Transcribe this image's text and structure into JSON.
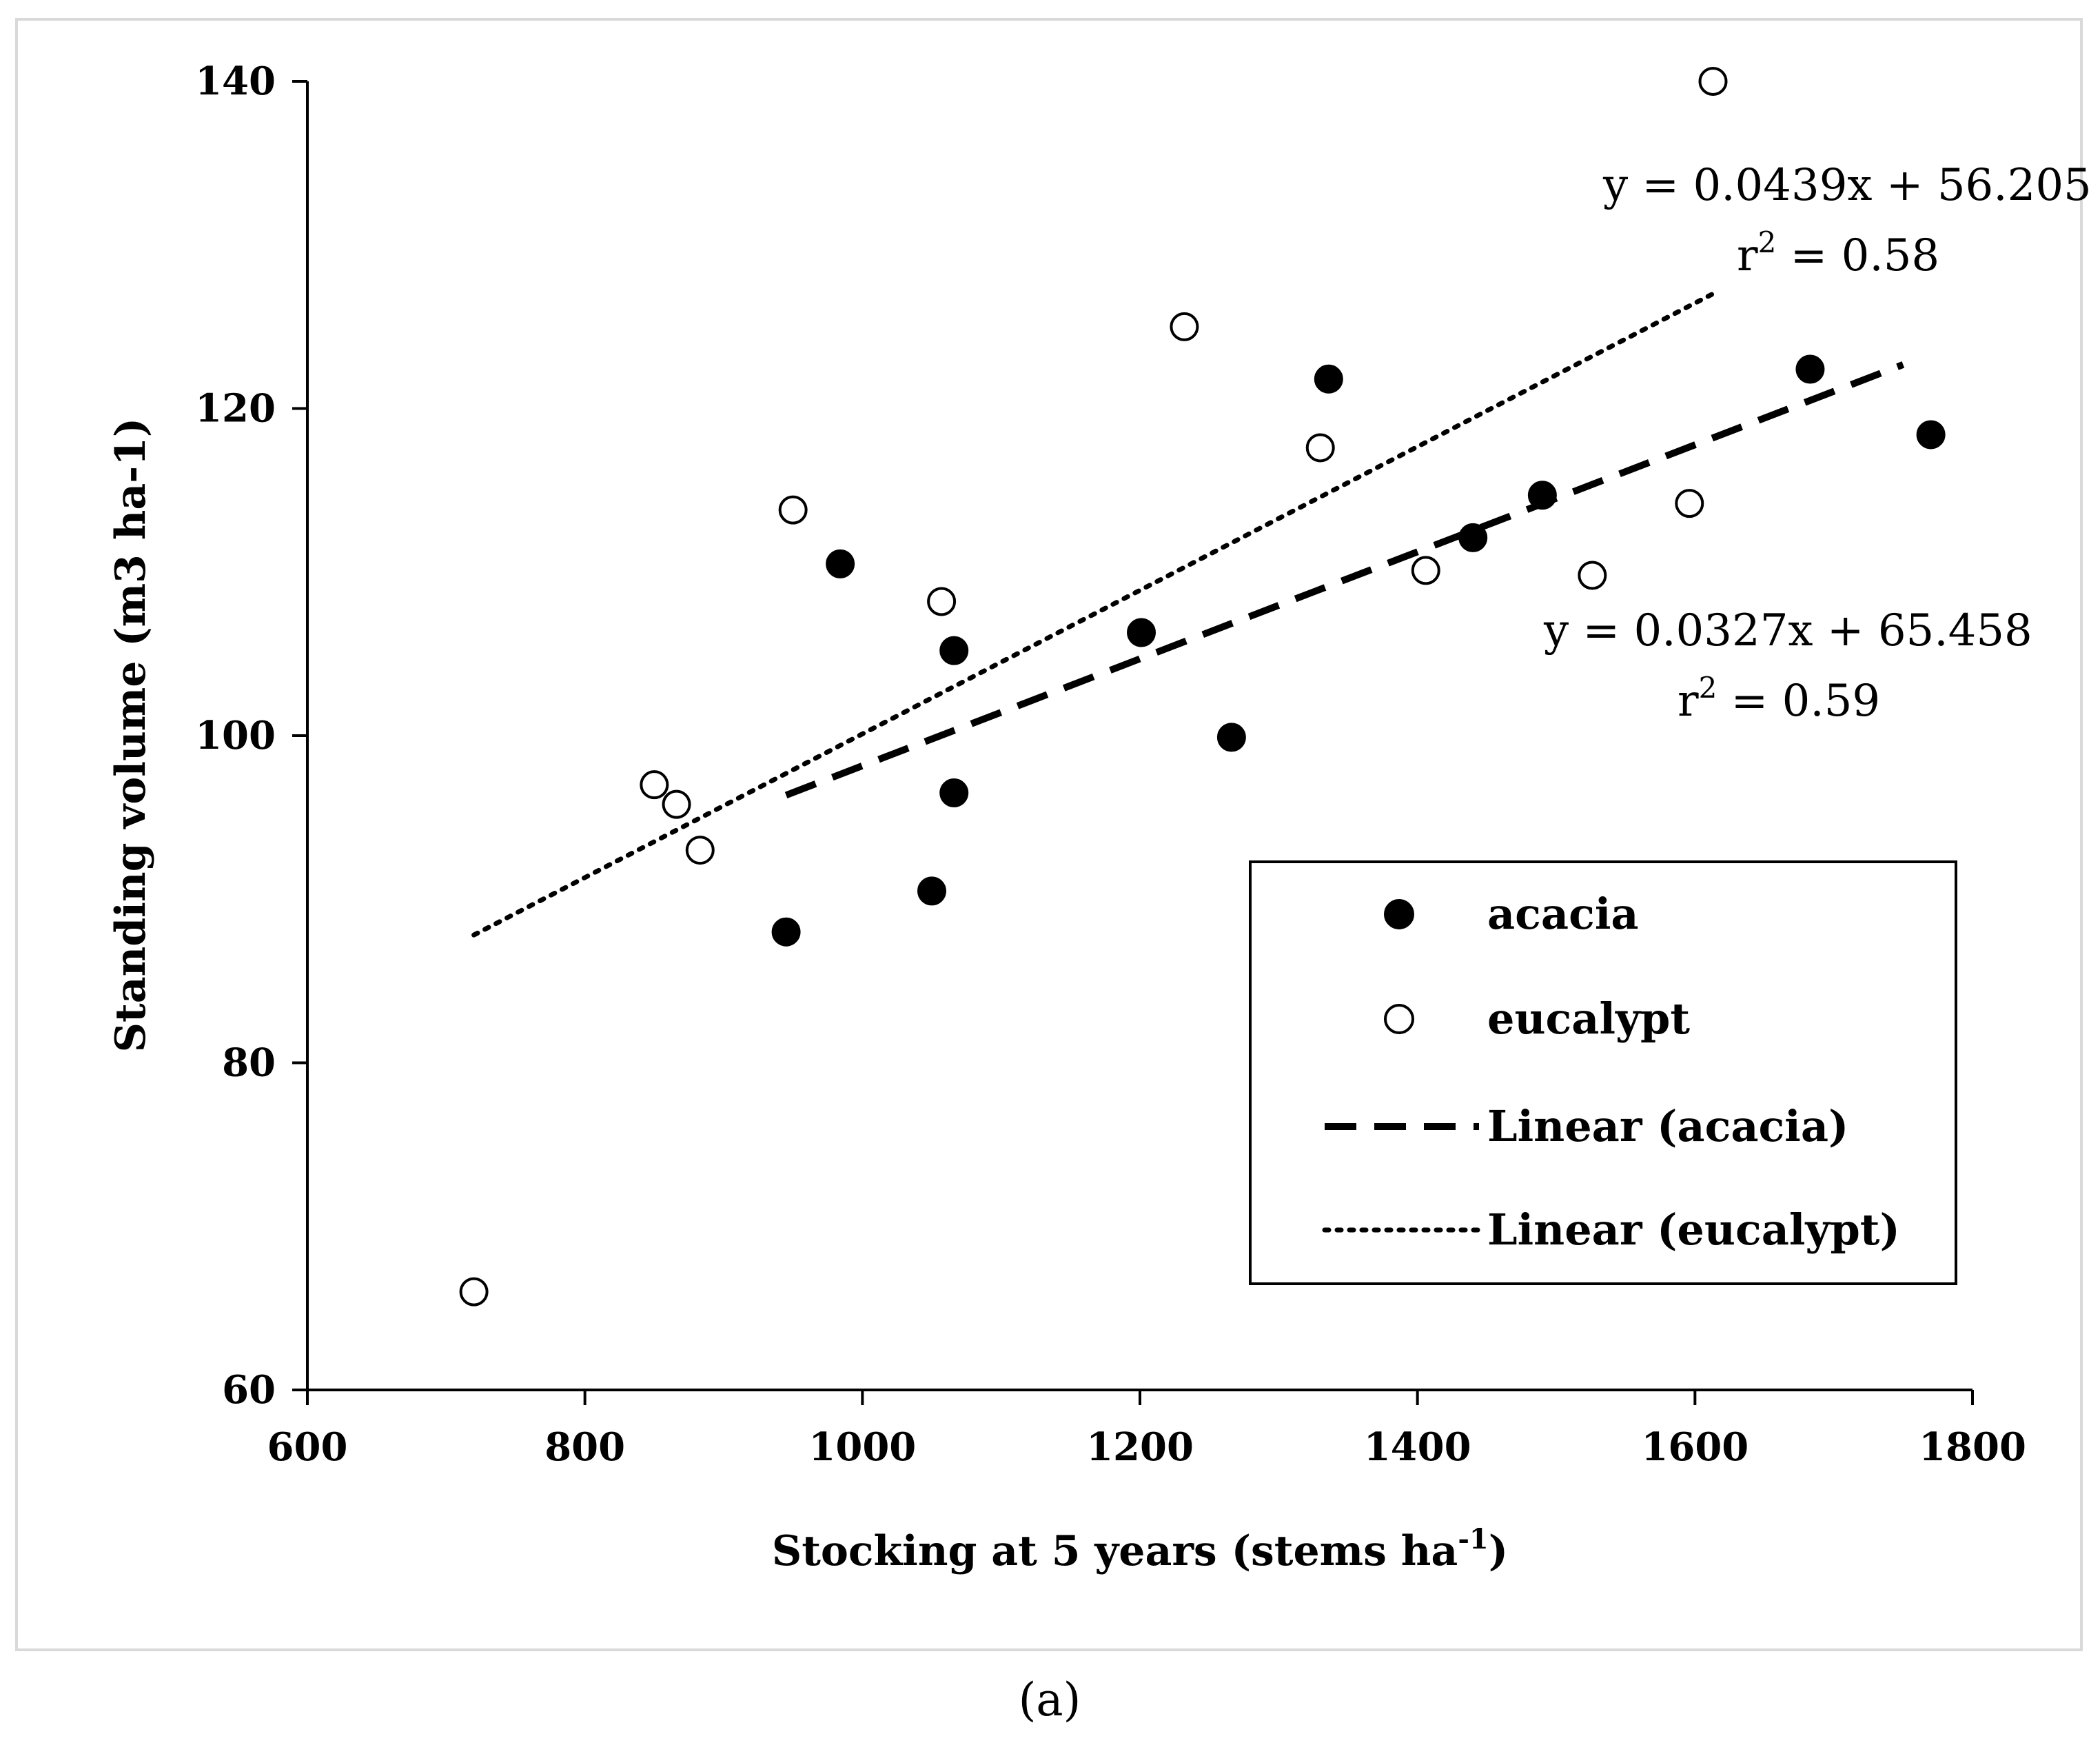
{
  "chart_data": {
    "type": "scatter",
    "xlabel": "Stocking at 5 years (stems ha",
    "xlabel_sup": "-1",
    "xlabel_end": ")",
    "ylabel": "Standing volume (m3 ha-1)",
    "xlim": [
      600,
      1800
    ],
    "ylim": [
      60,
      140
    ],
    "xticks": [
      600,
      800,
      1000,
      1200,
      1400,
      1600,
      1800
    ],
    "yticks": [
      60,
      80,
      100,
      120,
      140
    ],
    "xtick_labels": [
      "600",
      "800",
      "1000",
      "1200",
      "1400",
      "1600",
      "1800"
    ],
    "ytick_labels": [
      "60",
      "80",
      "100",
      "120",
      "140"
    ],
    "series": [
      {
        "name": "acacia",
        "marker": "filled-circle",
        "points": [
          [
            945,
            88
          ],
          [
            984,
            110.5
          ],
          [
            1050,
            90.5
          ],
          [
            1066,
            105.2
          ],
          [
            1066,
            96.5
          ],
          [
            1201,
            106.3
          ],
          [
            1266,
            99.9
          ],
          [
            1336,
            121.8
          ],
          [
            1440,
            112.1
          ],
          [
            1490,
            114.7
          ],
          [
            1683,
            122.4
          ],
          [
            1770,
            118.4
          ]
        ]
      },
      {
        "name": "eucalypt",
        "marker": "open-circle",
        "points": [
          [
            720,
            66
          ],
          [
            850,
            97
          ],
          [
            866,
            95.8
          ],
          [
            883,
            93
          ],
          [
            950,
            113.8
          ],
          [
            1057,
            108.2
          ],
          [
            1232,
            125
          ],
          [
            1330,
            117.6
          ],
          [
            1406,
            110.1
          ],
          [
            1526,
            109.8
          ],
          [
            1596,
            114.2
          ],
          [
            1613,
            140
          ]
        ]
      }
    ],
    "trendlines": [
      {
        "name": "Linear (acacia)",
        "style": "dashed",
        "slope": 0.0327,
        "intercept": 65.458,
        "x_range": [
          945,
          1750
        ],
        "equation": "y = 0.0327x + 65.458",
        "r2_prefix": "r",
        "r2_sup": "2",
        "r2_value": " = 0.59"
      },
      {
        "name": "Linear (eucalypt)",
        "style": "dotted",
        "slope": 0.0439,
        "intercept": 56.205,
        "x_range": [
          720,
          1613
        ],
        "equation": "y = 0.0439x + 56.205",
        "r2_prefix": "r",
        "r2_sup": "2",
        "r2_value": " = 0.58"
      }
    ],
    "legend": {
      "position": "bottom-right",
      "entries": [
        "acacia",
        "eucalypt",
        "Linear (acacia)",
        "Linear (eucalypt)"
      ]
    }
  },
  "caption": "(a)"
}
